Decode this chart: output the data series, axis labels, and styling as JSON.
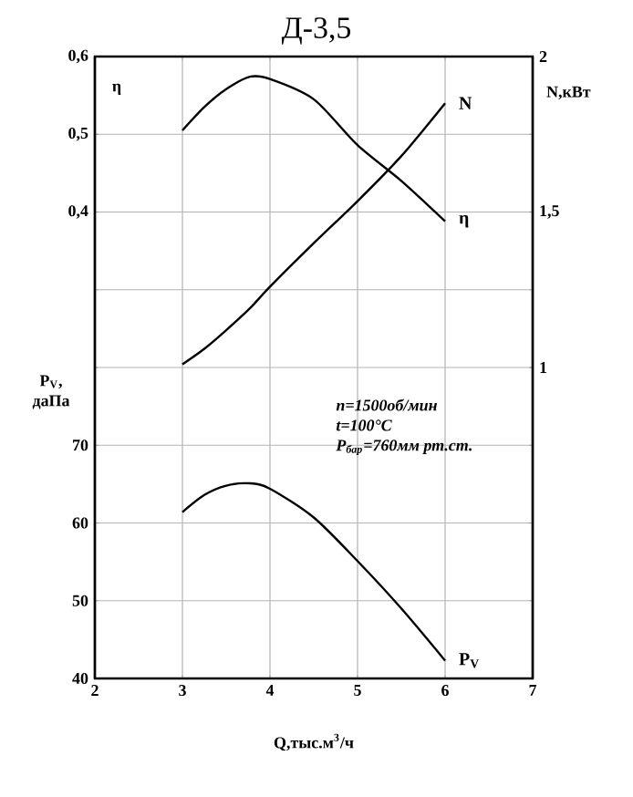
{
  "chart_data": {
    "type": "line",
    "title": "Д-3,5",
    "xlabel": "Q,тыс.м$^{3}$/ч",
    "ylabel": "P$_{V}$, даПа",
    "y2label": "N,кВт",
    "y3label": "η",
    "x": [
      3,
      3.25,
      3.5,
      3.77,
      4,
      4.5,
      5,
      5.5,
      6
    ],
    "series": [
      {
        "name": "P$_{V}$",
        "color": "#000000",
        "axis": "y",
        "values": [
          61.4,
          63.6,
          64.8,
          65.1,
          64.4,
          60.7,
          55.1,
          49,
          42.3
        ]
      },
      {
        "name": "N",
        "color": "#000000",
        "axis": "y2",
        "values": [
          1.01,
          1.06,
          1.12,
          1.19,
          1.26,
          1.4,
          1.535,
          1.68,
          1.85
        ]
      },
      {
        "name": "η",
        "color": "#000000",
        "axis": "y3",
        "values": [
          0.505,
          0.535,
          0.558,
          0.574,
          0.571,
          0.545,
          0.486,
          0.44,
          0.388
        ]
      }
    ],
    "xlim": [
      2,
      7
    ],
    "xticks": [
      2,
      3,
      4,
      5,
      6,
      7
    ],
    "ylim": [
      40,
      120
    ],
    "yticks": [
      40,
      50,
      60,
      70,
      {
        "value": 80,
        "label": null
      },
      {
        "value": 90,
        "label": null
      },
      {
        "value": 100,
        "label": null
      },
      {
        "value": 110,
        "label": null
      },
      {
        "value": 120,
        "label": null
      }
    ],
    "y2lim": [
      0,
      2
    ],
    "y2ticks": [
      1,
      {
        "value": 1.5,
        "label": "1,5"
      },
      2
    ],
    "y3lim": [
      -0.2,
      0.6
    ],
    "y3ticks": [
      {
        "value": 0.4,
        "label": "0,4"
      },
      {
        "value": 0.5,
        "label": "0,5"
      },
      {
        "value": 0.6,
        "label": "0,6"
      }
    ],
    "grid": true,
    "marker": "none",
    "line_style": "solid",
    "annotations": [
      "n=1500об/мин",
      "t=100°C",
      "P$_{бар}$=760мм рт.ст."
    ]
  }
}
